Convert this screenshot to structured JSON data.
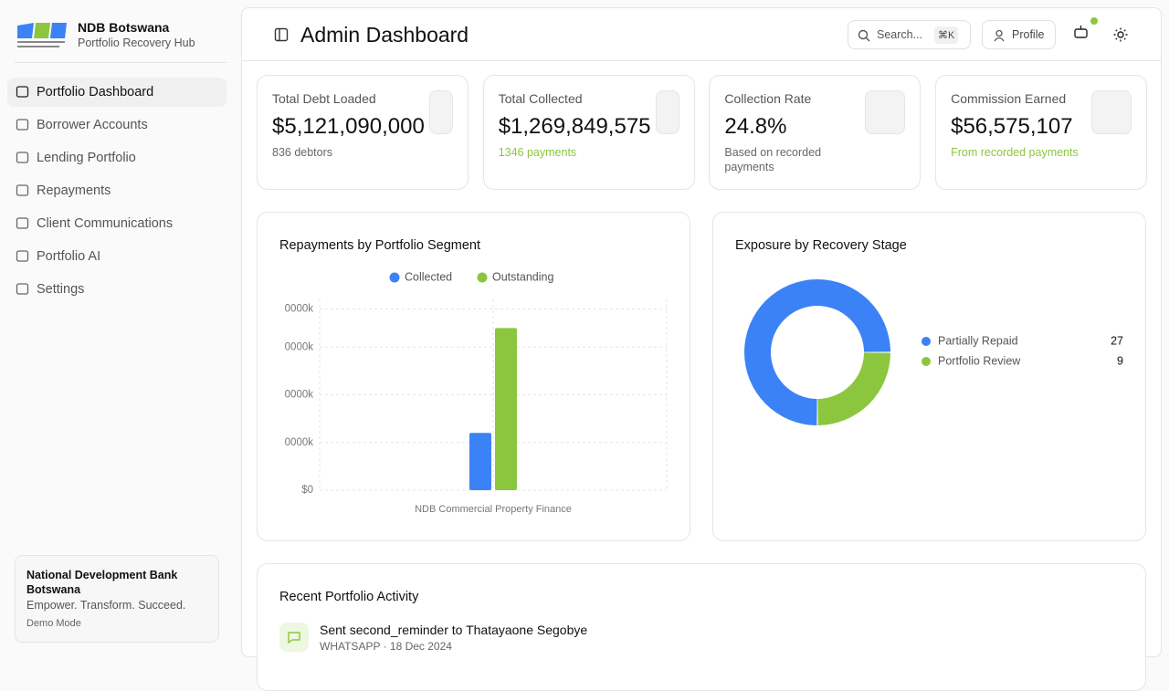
{
  "sidebar": {
    "brand": "NDB Botswana",
    "subtitle": "Portfolio Recovery Hub",
    "nav": [
      "Portfolio Dashboard",
      "Borrower Accounts",
      "Lending Portfolio",
      "Repayments",
      "Client Communications",
      "Portfolio AI",
      "Settings"
    ],
    "footer": {
      "name": "National Development Bank Botswana",
      "tagline": "Empower. Transform. Succeed.",
      "mode": "Demo Mode"
    }
  },
  "header": {
    "title": "Admin Dashboard",
    "search": "Search...",
    "shortcut": "⌘K",
    "profile": "Profile"
  },
  "stats": [
    {
      "label": "Total Debt Loaded",
      "value": "$5,121,090,000",
      "note": "836 debtors"
    },
    {
      "label": "Total Collected",
      "value": "$1,269,849,575",
      "note": "1346 payments"
    },
    {
      "label": "Collection Rate",
      "value": "24.8%",
      "note": "Based on recorded payments"
    },
    {
      "label": "Commission Earned",
      "value": "$56,575,107",
      "note": "From recorded payments"
    }
  ],
  "chart_data": [
    {
      "type": "bar",
      "title": "Repayments by Portfolio Segment",
      "categories": [
        "NDB Commercial Property Finance"
      ],
      "series": [
        {
          "name": "Collected",
          "color": "#3b82f6",
          "values": [
            1200000000
          ]
        },
        {
          "name": "Outstanding",
          "color": "#8cc63f",
          "values": [
            3400000000
          ]
        }
      ],
      "ylim": [
        0,
        4000000000
      ],
      "yticks": [
        {
          "value": 0,
          "label": "$0"
        },
        {
          "value": 1000000000,
          "label": "0000k"
        },
        {
          "value": 2000000000,
          "label": "0000k"
        },
        {
          "value": 3000000000,
          "label": "0000k"
        },
        {
          "value": 3800000000,
          "label": "0000k"
        }
      ],
      "grid": true,
      "legend": "top"
    },
    {
      "type": "pie",
      "title": "Exposure by Recovery Stage",
      "categories": [
        "Partially Repaid",
        "Portfolio Review"
      ],
      "values": [
        27,
        9
      ],
      "colors": [
        "#3b82f6",
        "#8cc63f"
      ],
      "legend": "right"
    }
  ],
  "activity": {
    "title": "Recent Portfolio Activity",
    "items": [
      {
        "text": "Sent second_reminder to Thatayaone Segobye",
        "meta": "WHATSAPP · 18 Dec 2024"
      }
    ]
  }
}
